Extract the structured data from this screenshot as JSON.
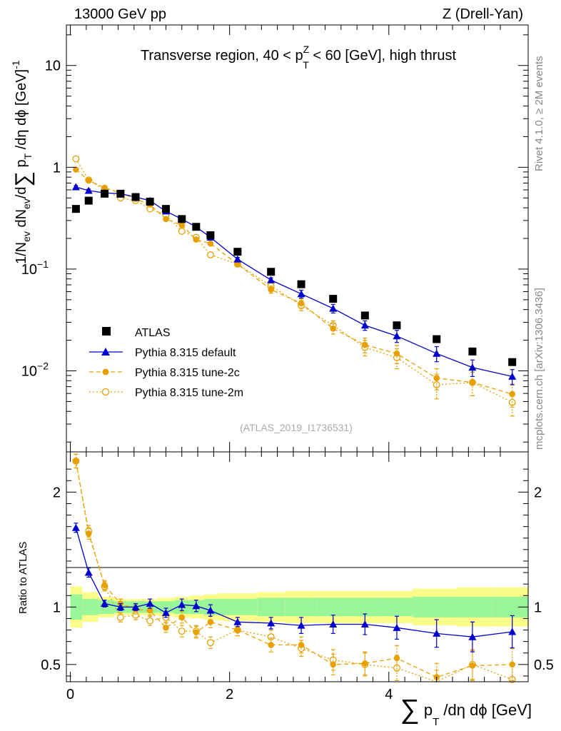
{
  "header": {
    "left": "13000 GeV pp",
    "right": "Z (Drell-Yan)"
  },
  "side_labels": {
    "rivet": "Rivet 4.1.0, ≥ 2M events",
    "mcplots": "mcplots.cern.ch [arXiv:1306.3436]"
  },
  "chart_data": [
    {
      "type": "scatter",
      "panel": "main",
      "title": "Transverse region, 40 < pT^Z < 60 [GeV], high thrust",
      "title_parts": {
        "prefix": "Transverse region, 40 < p",
        "sup": "Z",
        "sub": "T",
        "suffix": " < 60 [GeV], high thrust"
      },
      "ylabel": "1/N_ev dN_ev/d∑ p_T /dη dϕ [GeV]^-1",
      "ylabel_parts": {
        "part1": "1/N",
        "sub1": "ev",
        "part2": " dN",
        "sub2": "ev",
        "part3": "/d",
        "sigma": "∑",
        "part4": " p",
        "sub4": "T",
        "part5": " /dη dϕ  [GeV]",
        "sup5": "-1"
      },
      "yscale": "log",
      "ylim": [
        0.0016,
        25
      ],
      "xlim": [
        -0.05,
        5.75
      ],
      "y_ticks": [
        {
          "value": 10,
          "label": "10"
        },
        {
          "value": 1,
          "label": "1"
        },
        {
          "value": 0.1,
          "label": "10",
          "sup": "−1"
        },
        {
          "value": 0.01,
          "label": "10",
          "sup": "−2"
        }
      ],
      "watermark": "(ATLAS_2019_I1736531)",
      "legend_position": "lower-left",
      "series": [
        {
          "name": "ATLAS",
          "style": "data",
          "color": "#000000",
          "x": [
            0.07,
            0.23,
            0.43,
            0.63,
            0.82,
            1.0,
            1.2,
            1.4,
            1.58,
            1.76,
            2.1,
            2.52,
            2.9,
            3.3,
            3.7,
            4.1,
            4.6,
            5.05,
            5.55
          ],
          "y": [
            0.39,
            0.47,
            0.55,
            0.55,
            0.51,
            0.46,
            0.39,
            0.31,
            0.26,
            0.215,
            0.148,
            0.094,
            0.071,
            0.051,
            0.035,
            0.028,
            0.0205,
            0.0155,
            0.0122
          ]
        },
        {
          "name": "Pythia 8.315 default",
          "style": "solid-triangle",
          "color": "#0000cc",
          "x": [
            0.07,
            0.23,
            0.43,
            0.63,
            0.82,
            1.0,
            1.2,
            1.4,
            1.58,
            1.76,
            2.1,
            2.52,
            2.9,
            3.3,
            3.7,
            4.1,
            4.6,
            5.05,
            5.55
          ],
          "y": [
            0.64,
            0.59,
            0.56,
            0.55,
            0.51,
            0.47,
            0.37,
            0.31,
            0.26,
            0.205,
            0.125,
            0.078,
            0.057,
            0.041,
            0.028,
            0.022,
            0.0148,
            0.0108,
            0.0088
          ],
          "err": [
            0.02,
            0.02,
            0.015,
            0.015,
            0.012,
            0.012,
            0.01,
            0.01,
            0.008,
            0.007,
            0.005,
            0.004,
            0.005,
            0.004,
            0.003,
            0.003,
            0.0025,
            0.002,
            0.0015
          ]
        },
        {
          "name": "Pythia 8.315 tune-2c",
          "style": "dashed-circle",
          "color": "#e8a000",
          "x": [
            0.07,
            0.23,
            0.43,
            0.63,
            0.82,
            1.0,
            1.2,
            1.4,
            1.58,
            1.76,
            2.1,
            2.52,
            2.9,
            3.3,
            3.7,
            4.1,
            4.6,
            5.05,
            5.55
          ],
          "y": [
            0.95,
            0.74,
            0.63,
            0.56,
            0.49,
            0.43,
            0.31,
            0.27,
            0.195,
            0.178,
            0.112,
            0.063,
            0.046,
            0.026,
            0.018,
            0.0148,
            0.0085,
            0.0077,
            0.0059
          ],
          "err": [
            0.03,
            0.02,
            0.02,
            0.015,
            0.012,
            0.012,
            0.01,
            0.01,
            0.008,
            0.007,
            0.006,
            0.005,
            0.005,
            0.003,
            0.003,
            0.003,
            0.002,
            0.002,
            0.0015
          ]
        },
        {
          "name": "Pythia 8.315 tune-2m",
          "style": "dotted-open-circle",
          "color": "#e8a000",
          "x": [
            0.07,
            0.23,
            0.43,
            0.63,
            0.82,
            1.0,
            1.2,
            1.4,
            1.58,
            1.76,
            2.1,
            2.52,
            2.9,
            3.3,
            3.7,
            4.1,
            4.6,
            5.05,
            5.55
          ],
          "y": [
            1.21,
            0.75,
            0.6,
            0.5,
            0.47,
            0.39,
            0.34,
            0.235,
            0.205,
            0.138,
            0.112,
            0.068,
            0.044,
            0.028,
            0.017,
            0.0135,
            0.0073,
            0.0077,
            0.0049
          ],
          "err": [
            0.03,
            0.02,
            0.02,
            0.015,
            0.012,
            0.012,
            0.01,
            0.01,
            0.008,
            0.007,
            0.006,
            0.005,
            0.005,
            0.003,
            0.003,
            0.003,
            0.002,
            0.002,
            0.0013
          ]
        }
      ]
    },
    {
      "type": "scatter",
      "panel": "ratio",
      "ylabel": "Ratio to ATLAS",
      "xlabel": "∑ p_T /dη dϕ [GeV]",
      "xlabel_parts": {
        "sigma": "∑",
        "p": " p",
        "sub": "T",
        "rest": " /dη dϕ [GeV]"
      },
      "ylim": [
        0.35,
        2.35
      ],
      "xlim": [
        -0.05,
        5.75
      ],
      "x_ticks": [
        {
          "value": 0,
          "label": "0"
        },
        {
          "value": 2,
          "label": "2"
        },
        {
          "value": 4,
          "label": "4"
        }
      ],
      "y_ticks": [
        {
          "value": 0.5,
          "label": "0.5"
        },
        {
          "value": 1,
          "label": "1"
        },
        {
          "value": 2,
          "label": "2"
        }
      ],
      "bin_edges": [
        0,
        0.15,
        0.35,
        0.55,
        0.7,
        0.9,
        1.1,
        1.3,
        1.5,
        1.68,
        1.85,
        2.35,
        2.7,
        3.1,
        3.5,
        3.9,
        4.3,
        4.85,
        5.3,
        5.8
      ],
      "band_inner": [
        0.11,
        0.07,
        0.06,
        0.05,
        0.05,
        0.05,
        0.05,
        0.06,
        0.06,
        0.07,
        0.07,
        0.08,
        0.08,
        0.08,
        0.08,
        0.08,
        0.09,
        0.09,
        0.09
      ],
      "band_outer": [
        0.18,
        0.13,
        0.09,
        0.07,
        0.07,
        0.07,
        0.08,
        0.09,
        0.1,
        0.11,
        0.12,
        0.13,
        0.14,
        0.14,
        0.14,
        0.14,
        0.16,
        0.17,
        0.17
      ],
      "band_colors": {
        "inner": "#99f799",
        "outer": "#fbfb8a"
      },
      "series": [
        {
          "name": "Pythia 8.315 default",
          "style": "solid-triangle",
          "color": "#0000cc",
          "x": [
            0.07,
            0.23,
            0.43,
            0.63,
            0.82,
            1.0,
            1.2,
            1.4,
            1.58,
            1.76,
            2.1,
            2.52,
            2.9,
            3.3,
            3.7,
            4.1,
            4.6,
            5.05,
            5.55
          ],
          "y": [
            1.69,
            1.3,
            1.03,
            1.0,
            1.0,
            1.03,
            0.95,
            1.02,
            1.01,
            0.97,
            0.87,
            0.86,
            0.84,
            0.85,
            0.85,
            0.82,
            0.77,
            0.74,
            0.785
          ],
          "err": [
            0.04,
            0.04,
            0.03,
            0.03,
            0.03,
            0.04,
            0.04,
            0.05,
            0.05,
            0.05,
            0.04,
            0.05,
            0.07,
            0.08,
            0.09,
            0.1,
            0.12,
            0.13,
            0.14
          ]
        },
        {
          "name": "Pythia 8.315 tune-2c",
          "style": "dashed-circle",
          "color": "#e8a000",
          "x": [
            0.07,
            0.23,
            0.43,
            0.63,
            0.82,
            1.0,
            1.2,
            1.4,
            1.58,
            1.76,
            2.1,
            2.52,
            2.9,
            3.3,
            3.7,
            4.1,
            4.6,
            5.05,
            5.55
          ],
          "y": [
            2.27,
            1.64,
            1.19,
            1.03,
            0.98,
            0.97,
            0.82,
            0.91,
            0.78,
            0.87,
            0.8,
            0.67,
            0.67,
            0.5,
            0.51,
            0.555,
            0.39,
            0.49,
            0.5
          ],
          "err": [
            0.06,
            0.05,
            0.04,
            0.04,
            0.04,
            0.04,
            0.04,
            0.05,
            0.05,
            0.05,
            0.05,
            0.06,
            0.07,
            0.09,
            0.1,
            0.11,
            0.12,
            0.13,
            0.14
          ]
        },
        {
          "name": "Pythia 8.315 tune-2m",
          "style": "dotted-open-circle",
          "color": "#e8a000",
          "x": [
            0.07,
            0.23,
            0.43,
            0.63,
            0.82,
            1.0,
            1.2,
            1.4,
            1.58,
            1.76,
            2.1,
            2.52,
            2.9,
            3.3,
            3.7,
            4.1,
            4.6,
            5.05,
            5.55
          ],
          "y": [
            2.27,
            1.66,
            1.18,
            0.91,
            0.93,
            0.88,
            0.91,
            0.79,
            0.79,
            0.69,
            0.8,
            0.74,
            0.64,
            0.54,
            0.5,
            0.47,
            0.33,
            0.5,
            0.37
          ],
          "err": [
            0.06,
            0.05,
            0.04,
            0.04,
            0.04,
            0.04,
            0.04,
            0.05,
            0.05,
            0.05,
            0.05,
            0.06,
            0.07,
            0.09,
            0.1,
            0.11,
            0.12,
            0.13,
            0.14
          ]
        }
      ]
    }
  ]
}
